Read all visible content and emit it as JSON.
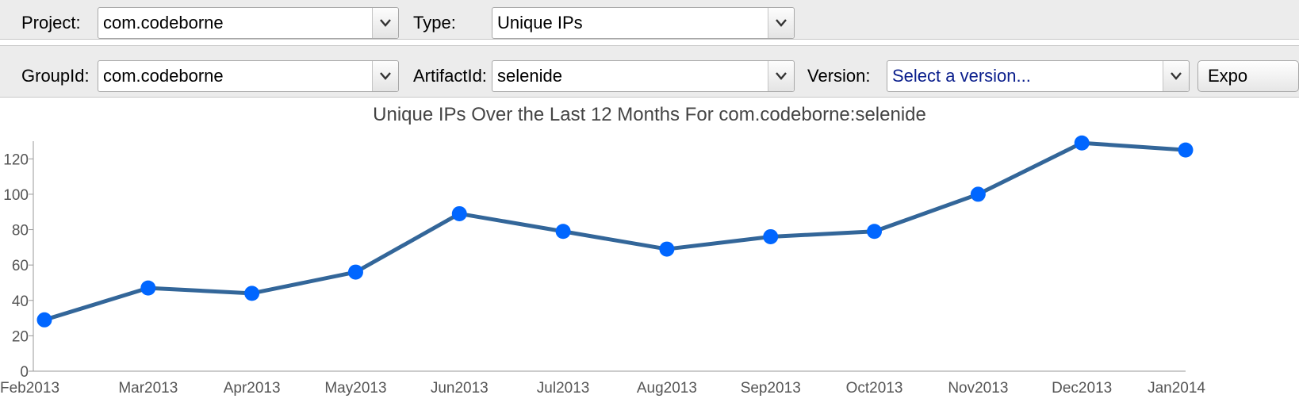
{
  "toolbar_row1": {
    "project_label": "Project:",
    "project_value": "com.codeborne",
    "type_label": "Type:",
    "type_value": "Unique IPs"
  },
  "toolbar_row2": {
    "groupid_label": "GroupId:",
    "groupid_value": "com.codeborne",
    "artifactid_label": "ArtifactId:",
    "artifactid_value": "selenide",
    "version_label": "Version:",
    "version_placeholder": "Select a version...",
    "export_button": "Expo"
  },
  "chart_data": {
    "type": "line",
    "title": "Unique IPs Over the Last 12 Months For com.codeborne:selenide",
    "xlabel": "",
    "ylabel": "",
    "categories": [
      "Feb2013",
      "Mar2013",
      "Apr2013",
      "May2013",
      "Jun2013",
      "Jul2013",
      "Aug2013",
      "Sep2013",
      "Oct2013",
      "Nov2013",
      "Dec2013",
      "Jan2014"
    ],
    "values": [
      29,
      47,
      44,
      56,
      89,
      79,
      69,
      76,
      79,
      100,
      129,
      125
    ],
    "ylim": [
      0,
      130
    ],
    "yticks": [
      0,
      20,
      40,
      60,
      80,
      100,
      120
    ],
    "grid": false,
    "line_color": "#336699",
    "marker_color": "#0066ff"
  }
}
